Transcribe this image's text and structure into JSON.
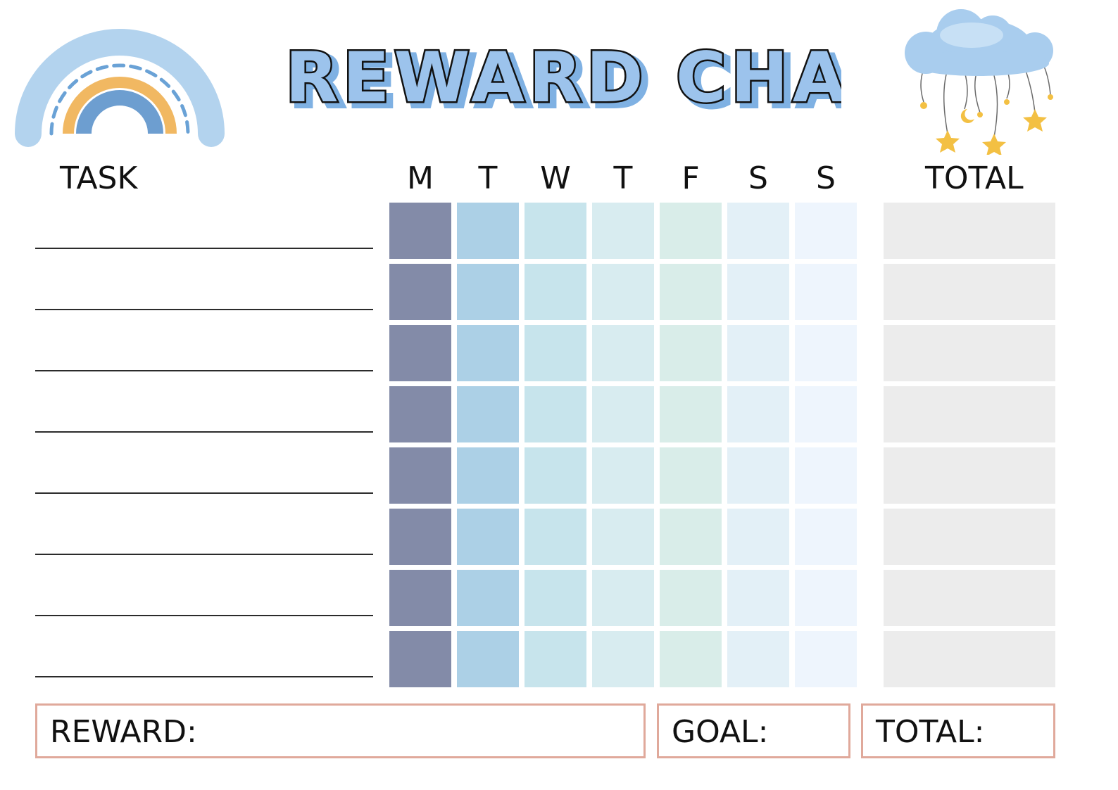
{
  "title": "REWARD CHART",
  "headers": {
    "task": "TASK",
    "total": "TOTAL",
    "days": [
      "M",
      "T",
      "W",
      "T",
      "F",
      "S",
      "S"
    ]
  },
  "footer": {
    "reward_label": "REWARD:",
    "goal_label": "GOAL:",
    "total_label": "TOTAL:"
  },
  "colors": {
    "title_fill": "#9cc3ec",
    "title_outline": "#111111",
    "day_columns": [
      "#838ba8",
      "#acd0e6",
      "#c7e4ec",
      "#d8ecf0",
      "#d9ede9",
      "#e3f0f7",
      "#eef5fd"
    ],
    "total_column": "#ececec",
    "footer_border": "#e0a99b",
    "rainbow_outer": "#b3d3ee",
    "rainbow_middle": "#f1b862",
    "rainbow_inner": "#6d9ed0",
    "cloud": "#a9cdee",
    "stars": "#f3c043"
  },
  "icons": [
    "rainbow-illustration",
    "cloud-with-stars-illustration"
  ],
  "task_row_count": 8
}
